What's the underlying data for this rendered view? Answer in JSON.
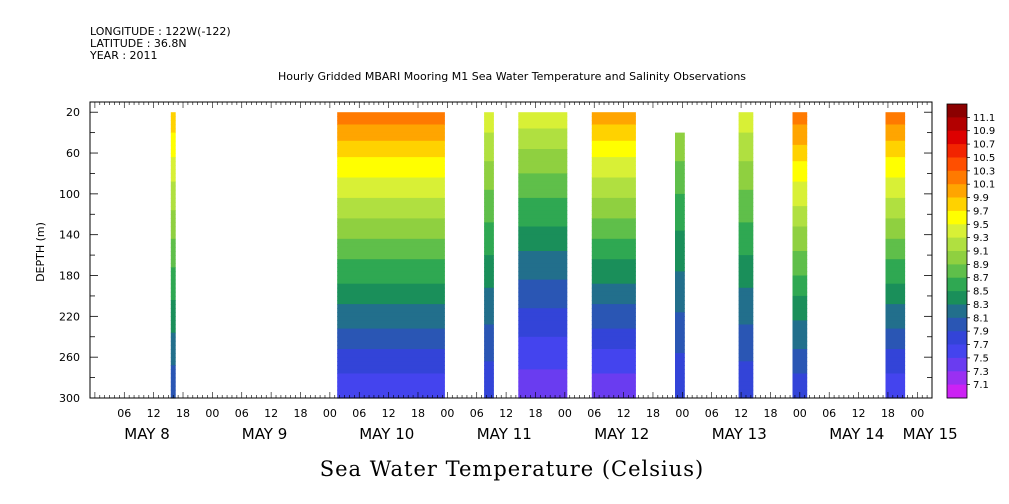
{
  "header": {
    "longitude": "LONGITUDE : 122W(-122)",
    "latitude": "LATITUDE : 36.8N",
    "year": "YEAR : 2011"
  },
  "chart_data": {
    "type": "heatmap",
    "title": "Hourly Gridded MBARI Mooring M1 Sea Water Temperature and Salinity Observations",
    "xlabel": "Sea Water Temperature (Celsius)",
    "ylabel": "DEPTH (m)",
    "x_unit": "hours since May 8 00:00",
    "xlim": [
      -1,
      171
    ],
    "ylim": [
      300,
      10
    ],
    "y_ticks": [
      20,
      60,
      100,
      140,
      180,
      220,
      260,
      300
    ],
    "x_hour_ticks": [
      "06",
      "12",
      "18",
      "00",
      "06",
      "12",
      "18",
      "00",
      "06",
      "12",
      "18",
      "00",
      "06",
      "12",
      "18",
      "00",
      "06",
      "12",
      "18",
      "00",
      "06",
      "12",
      "18",
      "00",
      "06",
      "12",
      "18",
      "00",
      "06",
      "12",
      "18"
    ],
    "x_hour_tick_hours": [
      6,
      12,
      18,
      24,
      30,
      36,
      42,
      48,
      54,
      60,
      66,
      72,
      78,
      84,
      90,
      96,
      102,
      108,
      114,
      120,
      126,
      132,
      138,
      144,
      150,
      156,
      162,
      168,
      174,
      180,
      186
    ],
    "day_labels": [
      {
        "label": "MAY  8",
        "hour": 6
      },
      {
        "label": "MAY  9",
        "hour": 30
      },
      {
        "label": "MAY 10",
        "hour": 54
      },
      {
        "label": "MAY 11",
        "hour": 78
      },
      {
        "label": "MAY 12",
        "hour": 102
      },
      {
        "label": "MAY 13",
        "hour": 126
      },
      {
        "label": "MAY 14",
        "hour": 150
      },
      {
        "label": "MAY 15",
        "hour": 165
      }
    ],
    "colorbar": {
      "levels": [
        "11.1",
        "10.9",
        "10.7",
        "10.5",
        "10.3",
        "10.1",
        "9.9",
        "9.7",
        "9.5",
        "9.3",
        "9.1",
        "8.9",
        "8.7",
        "8.5",
        "8.3",
        "8.1",
        "7.9",
        "7.7",
        "7.5",
        "7.3",
        "7.1"
      ],
      "colors": [
        "#8b0000",
        "#b20000",
        "#dd0000",
        "#f22400",
        "#ff4f00",
        "#ff7a00",
        "#ffa500",
        "#ffd200",
        "#ffff00",
        "#d8f036",
        "#b0e040",
        "#8fd040",
        "#5fbf4a",
        "#2fa852",
        "#1a8f5a",
        "#226f8c",
        "#2a56b4",
        "#3344d8",
        "#4444ee",
        "#6a3cf0",
        "#9a30f2",
        "#cc22f4"
      ]
    },
    "data_segments": [
      {
        "start": 15.5,
        "end": 16.5,
        "top": 20,
        "surface": 9.9,
        "bottom": 7.9
      },
      {
        "start": 49.5,
        "end": 71.5,
        "top": 20,
        "surface": 10.3,
        "bottom": 7.5
      },
      {
        "start": 79.5,
        "end": 81.5,
        "top": 20,
        "surface": 9.5,
        "bottom": 7.7
      },
      {
        "start": 86.5,
        "end": 96.5,
        "top": 20,
        "surface": 9.5,
        "bottom": 7.3
      },
      {
        "start": 101.5,
        "end": 110.5,
        "top": 20,
        "surface": 10.1,
        "bottom": 7.3
      },
      {
        "start": 118.5,
        "end": 120.5,
        "top": 40,
        "surface": 9.1,
        "bottom": 7.7
      },
      {
        "start": 131.5,
        "end": 134.5,
        "top": 20,
        "surface": 9.5,
        "bottom": 7.7
      },
      {
        "start": 142.5,
        "end": 145.5,
        "top": 20,
        "surface": 10.3,
        "bottom": 7.7
      },
      {
        "start": 161.5,
        "end": 165.5,
        "top": 20,
        "surface": 10.3,
        "bottom": 7.5
      }
    ]
  }
}
